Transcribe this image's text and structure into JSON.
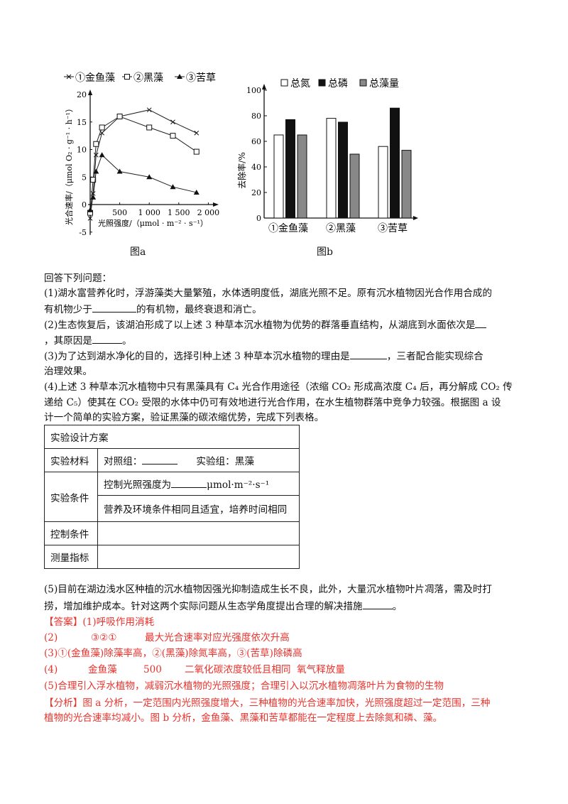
{
  "chart_data": [
    {
      "type": "line",
      "caption": "图a",
      "xlabel": "光照强度/（μmol · m⁻² · s⁻¹）",
      "ylabel": "光合速率/（μmol O₂ · g⁻¹ · h⁻¹）",
      "xlim": [
        0,
        2000
      ],
      "ylim": [
        -5,
        20
      ],
      "xticks": [
        "500",
        "1 000",
        "1 500",
        "2 000"
      ],
      "yticks": [
        "-5",
        "0",
        "5",
        "10",
        "15",
        "20"
      ],
      "grid": false,
      "legend": "top",
      "series": [
        {
          "name": "①金鱼藻",
          "marker": "x",
          "x": [
            0,
            50,
            100,
            200,
            500,
            1000,
            1400,
            1800
          ],
          "y": [
            -2.5,
            2,
            9,
            13,
            16,
            17.2,
            15,
            13
          ]
        },
        {
          "name": "②黑藻",
          "marker": "square",
          "x": [
            0,
            50,
            100,
            200,
            500,
            1000,
            1400,
            1800
          ],
          "y": [
            -1.5,
            4.5,
            11,
            14,
            16,
            14,
            12.5,
            9.6
          ]
        },
        {
          "name": "③苦草",
          "marker": "triangle",
          "x": [
            0,
            50,
            100,
            200,
            500,
            1000,
            1400,
            1800
          ],
          "y": [
            -1,
            1.3,
            6,
            9,
            6,
            5,
            3.2,
            2.2
          ]
        }
      ]
    },
    {
      "type": "bar",
      "caption": "图b",
      "ylabel": "去除率/%",
      "ylim": [
        0,
        100
      ],
      "yticks": [
        "0",
        "20",
        "40",
        "60",
        "80",
        "100"
      ],
      "categories": [
        "①金鱼藻",
        "②黑藻",
        "③苦草"
      ],
      "legend": "top",
      "series": [
        {
          "name": "总氮",
          "color": "#ffffff",
          "values": [
            65,
            78,
            56
          ]
        },
        {
          "name": "总磷",
          "color": "#111111",
          "values": [
            77,
            75,
            86
          ]
        },
        {
          "name": "总藻量",
          "color": "#888888",
          "values": [
            65,
            50,
            53
          ]
        }
      ]
    }
  ],
  "text": {
    "intro": "回答下列问题：",
    "q1a": "(1)湖水富营养化时，浮游藻类大量繁殖，水体透明度低，湖底光照不足。原有沉水植物因光合作用合成的",
    "q1b_pre": "有机物少于",
    "q1b_post": "的有机物，最终衰退和消亡。",
    "q2a": "(2)生态恢复后，该湖泊形成了以上述 3 种草本沉水植物为优势的群落垂直结构，从湖底到水面依次是",
    "q2b_pre": "，其原因是",
    "q2b_post": "。",
    "q3a_pre": "(3)为了达到湖水净化的目的，选择引种上述 3 种草本沉水植物的理由是",
    "q3a_post": "，三者配合能实现综合",
    "q3b": "治理效果。",
    "q4a": "(4)上述 3 种草本沉水植物中只有黑藻具有 C₄ 光合作用途径（浓缩 CO₂ 形成高浓度 C₄ 后，再分解成 CO₂ 传",
    "q4b": "递给 C₅）使其在 CO₂ 受限的水体中仍可有效地进行光合作用，在水生植物群落中竞争力较强。根据图 a 设",
    "q4c": "计一个简单的实验方案，验证黑藻的碳浓缩优势，完成下列表格。",
    "q5a": "(5)目前在湖边浅水区种植的沉水植物因强光抑制造成生长不良，此外，大量沉水植物叶片凋落，需及时打",
    "q5b_pre": "捞，增加维护成本。针对这两个实际问题从生态学角度提出合理的解决措施",
    "q5b_post": "。"
  },
  "table": {
    "header": "实验设计方案",
    "r1_label": "实验材料",
    "r1_ctrl": "对照组：",
    "r1_exp": "实验组：黑藻",
    "r2_label": "实验条件",
    "r2a_pre": "控制光照强度为",
    "r2a_unit": "μmol·m⁻²·s⁻¹",
    "r2b": "营养及环境条件相同且适宜，培养时间相同",
    "r3_label": "控制条件",
    "r4_label": "测量指标"
  },
  "answer": {
    "a1": "【答案】(1)呼吸作用消耗",
    "a2": [
      "(2)",
      "③②①",
      "最大光合速率对应光强度依次升高"
    ],
    "a3": "(3)①(金鱼藻)除藻率高，②(黑藻)除氮率高，③(苦草)除磷高",
    "a4": [
      "(4)",
      "金鱼藻",
      "500",
      "二氧化碳浓度较低且相同",
      "氧气释放量"
    ],
    "a5": "(5)合理引入浮水植物，减弱沉水植物的光照强度；合理引入以沉水植物凋落叶片为食物的生物",
    "an1": "【分析】图 a 分析，一定范围内光照强度增大，三种植物的光合速率加快，光照强度超过一定范围，三种",
    "an2": "植物的光合速率均减小。图 b 分析，金鱼藻、黑藻和苦草都能在一定程度上去除氮和磷、藻。"
  }
}
